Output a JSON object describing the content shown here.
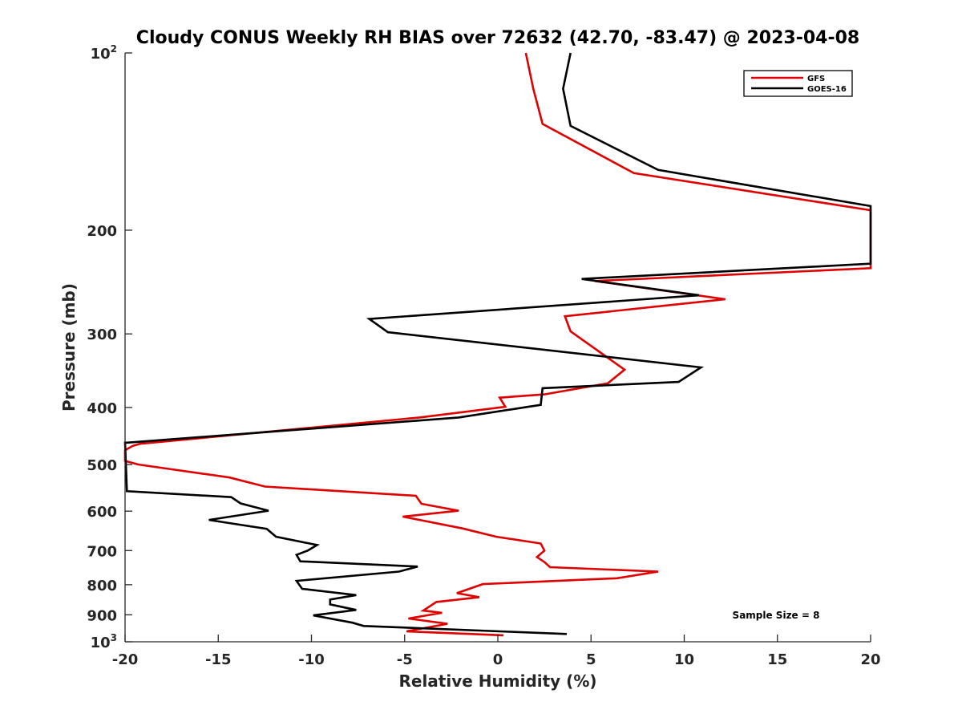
{
  "chart_data": {
    "type": "line",
    "title": "Cloudy CONUS Weekly RH BIAS over 72632 (42.70, -83.47) @ 2023-04-08",
    "xlabel": "Relative Humidity (%)",
    "ylabel": "Pressure (mb)",
    "xlim": [
      -20,
      20
    ],
    "ylim": [
      100,
      1000
    ],
    "y_scale": "log",
    "y_reversed": true,
    "grid": false,
    "legend_position": "top-right",
    "x_ticks": [
      "-20",
      "-15",
      "-10",
      "-5",
      "0",
      "5",
      "10",
      "15",
      "20"
    ],
    "y_ticks": [
      {
        "value": 100,
        "base": "10",
        "exp": "2"
      },
      {
        "value": 200,
        "label": "200"
      },
      {
        "value": 300,
        "label": "300"
      },
      {
        "value": 400,
        "label": "400"
      },
      {
        "value": 500,
        "label": "500"
      },
      {
        "value": 600,
        "label": "600"
      },
      {
        "value": 700,
        "label": "700"
      },
      {
        "value": 800,
        "label": "800"
      },
      {
        "value": 900,
        "label": "900"
      },
      {
        "value": 1000,
        "base": "10",
        "exp": "3"
      }
    ],
    "annotation": "Sample Size = 8",
    "series": [
      {
        "name": "GFS",
        "color": "#e00000",
        "points": [
          [
            1.5,
            100
          ],
          [
            1.9,
            115
          ],
          [
            2.4,
            132
          ],
          [
            7.3,
            160
          ],
          [
            20.0,
            185
          ],
          [
            20.0,
            232
          ],
          [
            5.2,
            244
          ],
          [
            12.2,
            262
          ],
          [
            3.6,
            280
          ],
          [
            3.9,
            297
          ],
          [
            6.8,
            345
          ],
          [
            5.9,
            364
          ],
          [
            2.5,
            380
          ],
          [
            0.1,
            385
          ],
          [
            0.4,
            399
          ],
          [
            -4.2,
            416
          ],
          [
            -19.2,
            461
          ],
          [
            -19.6,
            465
          ],
          [
            -20.0,
            473
          ],
          [
            -20.0,
            493
          ],
          [
            -19.3,
            500
          ],
          [
            -14.4,
            526
          ],
          [
            -12.5,
            545
          ],
          [
            -4.4,
            565
          ],
          [
            -4.1,
            583
          ],
          [
            -2.1,
            599
          ],
          [
            -5.1,
            613
          ],
          [
            -1.9,
            642
          ],
          [
            -0.1,
            663
          ],
          [
            2.3,
            681
          ],
          [
            2.5,
            700
          ],
          [
            2.1,
            718
          ],
          [
            2.5,
            732
          ],
          [
            2.8,
            747
          ],
          [
            8.6,
            760
          ],
          [
            6.4,
            780
          ],
          [
            -0.8,
            798
          ],
          [
            -2.2,
            827
          ],
          [
            -1.0,
            840
          ],
          [
            -3.3,
            856
          ],
          [
            -4.0,
            885
          ],
          [
            -3.0,
            893
          ],
          [
            -4.8,
            913
          ],
          [
            -2.7,
            932
          ],
          [
            -4.9,
            960
          ],
          [
            0.3,
            975
          ]
        ]
      },
      {
        "name": "GOES-16",
        "color": "#000000",
        "points": [
          [
            3.9,
            100
          ],
          [
            3.5,
            115
          ],
          [
            3.9,
            133
          ],
          [
            8.6,
            158
          ],
          [
            20.0,
            182
          ],
          [
            20.0,
            228
          ],
          [
            4.5,
            242
          ],
          [
            10.8,
            258
          ],
          [
            -6.9,
            283
          ],
          [
            -5.9,
            298
          ],
          [
            10.9,
            342
          ],
          [
            9.7,
            362
          ],
          [
            2.4,
            371
          ],
          [
            2.3,
            396
          ],
          [
            -2.1,
            416
          ],
          [
            -19.9,
            459
          ],
          [
            -20.0,
            459
          ],
          [
            -19.9,
            555
          ],
          [
            -14.3,
            568
          ],
          [
            -13.8,
            582
          ],
          [
            -12.3,
            599
          ],
          [
            -15.5,
            621
          ],
          [
            -12.4,
            643
          ],
          [
            -11.9,
            663
          ],
          [
            -9.7,
            685
          ],
          [
            -10.2,
            700
          ],
          [
            -10.8,
            712
          ],
          [
            -10.6,
            730
          ],
          [
            -4.3,
            745
          ],
          [
            -5.3,
            760
          ],
          [
            -10.8,
            788
          ],
          [
            -10.5,
            813
          ],
          [
            -7.6,
            833
          ],
          [
            -9.0,
            848
          ],
          [
            -9.0,
            864
          ],
          [
            -7.6,
            883
          ],
          [
            -9.9,
            902
          ],
          [
            -7.8,
            928
          ],
          [
            -7.2,
            940
          ],
          [
            3.7,
            970
          ]
        ]
      }
    ]
  }
}
